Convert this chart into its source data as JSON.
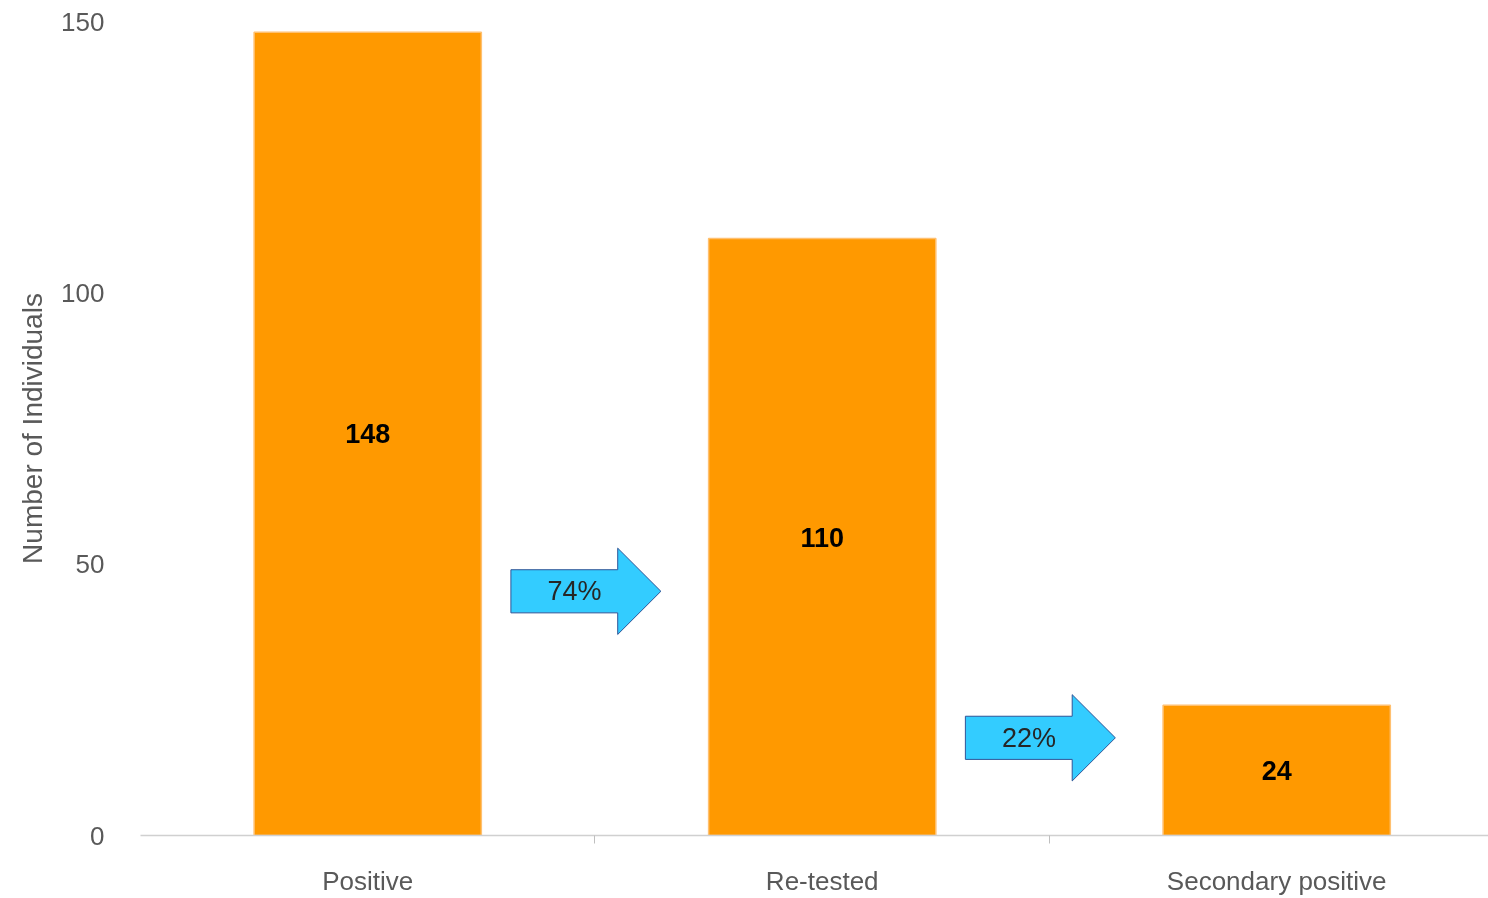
{
  "chart_data": {
    "type": "bar",
    "ylabel": "Number of Individuals",
    "categories": [
      "Positive",
      "Re-tested",
      "Secondary positive"
    ],
    "values": [
      148,
      110,
      24
    ],
    "color": "#ff9900",
    "ylim": [
      0,
      150
    ],
    "yticks": [
      0,
      50,
      100,
      150
    ],
    "grid": false,
    "data_labels": true,
    "annotations": [
      "74%",
      "22%"
    ]
  }
}
